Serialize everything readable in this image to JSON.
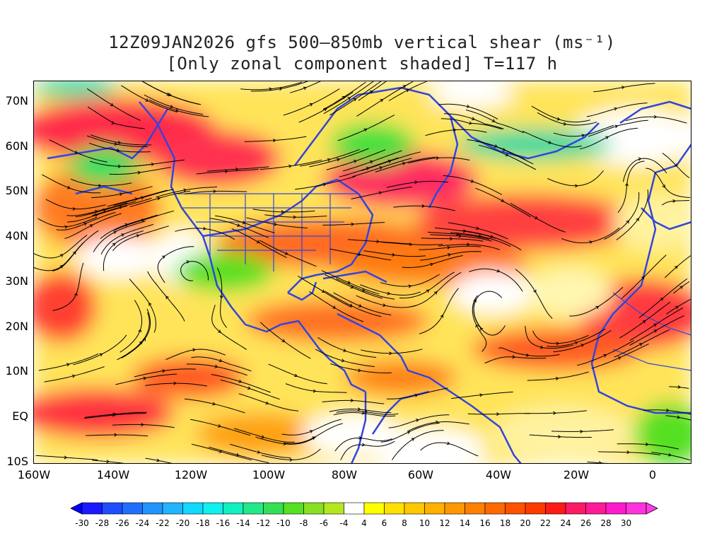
{
  "title": {
    "line1": "12Z09JAN2026 gfs 500–850mb vertical shear (ms⁻¹)",
    "line2": "[Only zonal component shaded] T=117 h"
  },
  "axes": {
    "lat_labels": [
      "70N",
      "60N",
      "50N",
      "40N",
      "30N",
      "20N",
      "10N",
      "EQ",
      "10S"
    ],
    "lat_values": [
      70,
      60,
      50,
      40,
      30,
      20,
      10,
      0,
      -10
    ],
    "lon_labels": [
      "160W",
      "140W",
      "120W",
      "100W",
      "80W",
      "60W",
      "40W",
      "20W",
      "0"
    ],
    "lon_values": [
      -160,
      -140,
      -120,
      -100,
      -80,
      -60,
      -40,
      -20,
      0
    ],
    "lon_range": [
      -160,
      10
    ],
    "lat_range": [
      -10,
      75
    ]
  },
  "colorbar": {
    "labels": [
      "-30",
      "-28",
      "-26",
      "-24",
      "-22",
      "-20",
      "-18",
      "-16",
      "-14",
      "-12",
      "-10",
      "-8",
      "-6",
      "-4",
      "4",
      "6",
      "8",
      "10",
      "12",
      "14",
      "16",
      "18",
      "20",
      "22",
      "24",
      "26",
      "28",
      "30"
    ],
    "colors": [
      "#1a1aff",
      "#1f4dff",
      "#1f6fff",
      "#2294ff",
      "#22b4ff",
      "#11d8ff",
      "#11f0f0",
      "#11f0c0",
      "#22e88a",
      "#33e055",
      "#55e022",
      "#88e022",
      "#b5e622",
      "#ffffff",
      "#ffff00",
      "#ffe000",
      "#ffc800",
      "#ffb000",
      "#ff9800",
      "#ff8000",
      "#ff6a00",
      "#ff5200",
      "#ff3a00",
      "#ff1a1a",
      "#ff1a66",
      "#ff1a99",
      "#ff1acc",
      "#ff33dd"
    ],
    "under_color": "#0000ff",
    "over_color": "#ff3be6"
  },
  "colors": {
    "coastline": "#3344dd",
    "streamline": "#000000"
  }
}
